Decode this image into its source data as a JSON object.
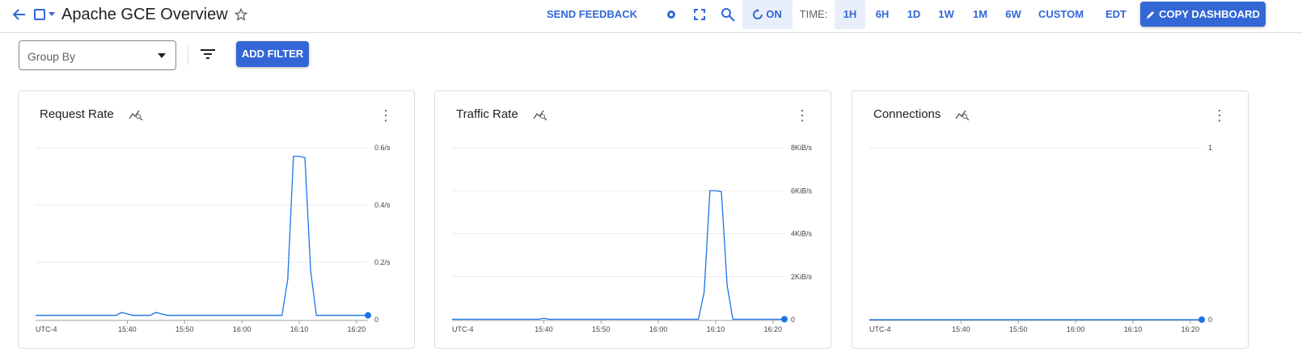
{
  "header": {
    "title": "Apache GCE Overview",
    "send_feedback": "SEND FEEDBACK",
    "auto_refresh": "ON",
    "time_label": "TIME:",
    "time_options": [
      "1H",
      "6H",
      "1D",
      "1W",
      "1M",
      "6W",
      "CUSTOM"
    ],
    "selected_time": "1H",
    "timezone": "EDT",
    "copy_dashboard": "COPY DASHBOARD"
  },
  "toolbar": {
    "group_by_placeholder": "Group By",
    "add_filter": "ADD FILTER"
  },
  "colors": {
    "accent": "#3367d6",
    "line": "#1a73e8"
  },
  "chart_data": [
    {
      "type": "line",
      "title": "Request Rate",
      "timezone_label": "UTC-4",
      "x_ticks": [
        "15:40",
        "15:50",
        "16:00",
        "16:10",
        "16:20"
      ],
      "y_ticks": [
        "0",
        "0.2/s",
        "0.4/s",
        "0.6/s"
      ],
      "ylim": [
        0,
        0.6
      ],
      "xlim": [
        "15:24",
        "16:22"
      ],
      "x": [
        "15:24",
        "15:38",
        "15:39",
        "15:40",
        "15:41",
        "15:44",
        "15:45",
        "15:46",
        "15:47",
        "16:07",
        "16:08",
        "16:09",
        "16:10",
        "16:11",
        "16:12",
        "16:13",
        "16:22"
      ],
      "values": [
        0.015,
        0.015,
        0.025,
        0.02,
        0.015,
        0.015,
        0.025,
        0.02,
        0.015,
        0.015,
        0.14,
        0.57,
        0.57,
        0.565,
        0.17,
        0.015,
        0.015
      ]
    },
    {
      "type": "line",
      "title": "Traffic Rate",
      "timezone_label": "UTC-4",
      "x_ticks": [
        "15:40",
        "15:50",
        "16:00",
        "16:10",
        "16:20"
      ],
      "y_ticks": [
        "0",
        "2KiB/s",
        "4KiB/s",
        "6KiB/s",
        "8KiB/s"
      ],
      "ylim": [
        0,
        8
      ],
      "xlim": [
        "15:24",
        "16:22"
      ],
      "x": [
        "15:24",
        "15:39",
        "15:40",
        "15:41",
        "16:07",
        "16:08",
        "16:09",
        "16:10",
        "16:11",
        "16:12",
        "16:13",
        "16:22"
      ],
      "values": [
        0.02,
        0.02,
        0.06,
        0.02,
        0.02,
        1.3,
        6.0,
        6.0,
        5.95,
        1.6,
        0.02,
        0.02
      ]
    },
    {
      "type": "line",
      "title": "Connections",
      "timezone_label": "UTC-4",
      "x_ticks": [
        "15:40",
        "15:50",
        "16:00",
        "16:10",
        "16:20"
      ],
      "y_ticks": [
        "0",
        "1"
      ],
      "ylim": [
        0,
        1
      ],
      "xlim": [
        "15:24",
        "16:22"
      ],
      "x": [
        "15:24",
        "16:22"
      ],
      "values": [
        0,
        0
      ]
    }
  ]
}
